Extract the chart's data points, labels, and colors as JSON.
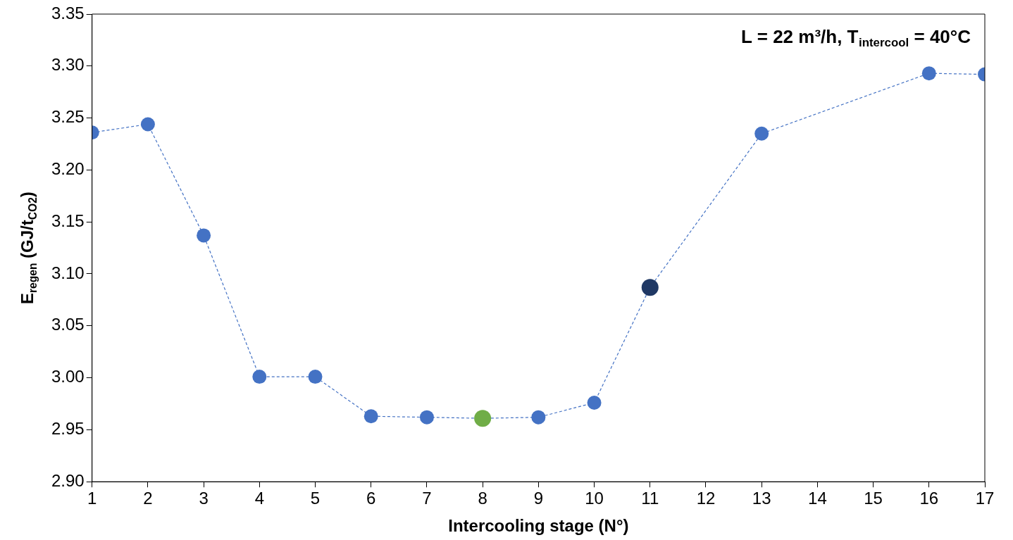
{
  "chart_data": {
    "type": "line",
    "xlabel": "Intercooling stage (N°)",
    "ylabel": "E$_{regen}$ (GJ/t$_{CO2}$)",
    "annotations": [
      "L = 22 m³/h, T$_{intercool}$ = 40°C"
    ],
    "x": [
      1,
      2,
      3,
      4,
      5,
      6,
      7,
      8,
      9,
      10,
      11,
      13,
      16,
      17
    ],
    "series": [
      {
        "color": "#4472c4",
        "colors": [
          "#4472c4",
          "#4472c4",
          "#4472c4",
          "#4472c4",
          "#4472c4",
          "#4472c4",
          "#4472c4",
          "#70ad47",
          "#4472c4",
          "#4472c4",
          "#1f3864",
          "#4472c4",
          "#4472c4",
          "#4472c4"
        ],
        "values": [
          3.236,
          3.244,
          3.137,
          3.001,
          3.001,
          2.963,
          2.962,
          2.961,
          2.962,
          2.976,
          3.087,
          3.235,
          3.293,
          3.292
        ]
      }
    ],
    "xlim": [
      1,
      17
    ],
    "xticks": [
      1,
      2,
      3,
      4,
      5,
      6,
      7,
      8,
      9,
      10,
      11,
      12,
      13,
      14,
      15,
      16,
      17
    ],
    "ylim": [
      2.9,
      3.35
    ],
    "yticks": [
      {
        "value": 2.9,
        "label": "2.90"
      },
      {
        "value": 2.95,
        "label": "2.95"
      },
      {
        "value": 3.0,
        "label": "3.00"
      },
      {
        "value": 3.05,
        "label": "3.05"
      },
      {
        "value": 3.1,
        "label": "3.10"
      },
      {
        "value": 3.15,
        "label": "3.15"
      },
      {
        "value": 3.2,
        "label": "3.20"
      },
      {
        "value": 3.25,
        "label": "3.25"
      },
      {
        "value": 3.3,
        "label": "3.30"
      },
      {
        "value": 3.35,
        "label": "3.35"
      }
    ],
    "grid": false,
    "legend": false,
    "marker": "circle",
    "line_style": "dashed"
  }
}
